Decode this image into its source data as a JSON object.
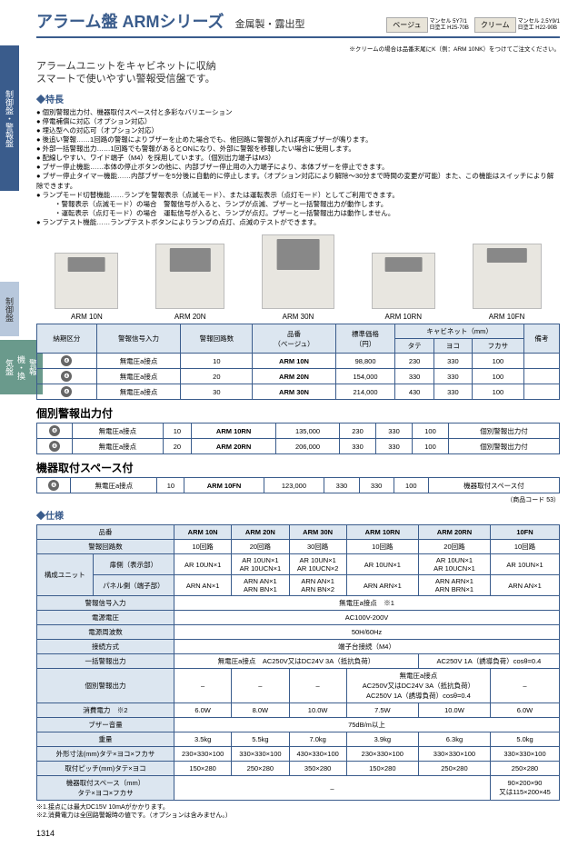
{
  "sideTabs": {
    "tab1": "制御盤・警報盤",
    "tab2": "制御盤",
    "tab3": "警報機・換気盤"
  },
  "header": {
    "series": "アラーム盤  ARMシリーズ",
    "type": "金属製・露出型",
    "colors": [
      {
        "label": "ベージュ",
        "l1": "マンセル 5Y7/1",
        "l2": "日塗工 H25-70B"
      },
      {
        "label": "クリーム",
        "l1": "マンセル 2.5Y9/1",
        "l2": "日塗工 H22-90B"
      }
    ],
    "topNote": "※クリームの場合は品番末尾にK（例：ARM 10NK）をつけてご注文ください。"
  },
  "intro": {
    "l1": "アラームユニットをキャビネットに収納",
    "l2": "スマートで使いやすい警報受信盤です。"
  },
  "featuresTitle": "◆特長",
  "features": [
    "個別警報出力付、機器取付スペース付と多彩なバリエーション",
    "停電補償に対応（オプション対応）",
    "埋込型への対応可（オプション対応）",
    "後追い警報……1回路の警報によりブザーを止めた場合でも、他回路に警報が入れば再度ブザーが鳴ります。",
    "外部一括警報出力……1回路でも警報があるとONになり、外部に警報を移報したい場合に使用します。",
    "配線しやすい、ワイド端子（M4）を採用しています。（個別出力端子はM3）",
    "ブザー停止機能……本体の停止ボタンの他に、内部ブザー停止用の入力端子により、本体ブザーを停止できます。",
    "ブザー停止タイマー機能……内部ブザーを5分後に自動的に停止します。（オプション対応により解除～30分まで時間の変更が可能）また、この機能はスイッチにより解除できます。",
    "ランプモード切替機能……ランプを警報表示（点滅モード）、または運転表示（点灯モード）としてご利用できます。"
  ],
  "featuresSub": [
    "・警報表示（点滅モード）の場合　警報信号が入ると、ランプが点滅、ブザーと一括警報出力が動作します。",
    "・運転表示（点灯モード）の場合　運転信号が入ると、ランプが点灯。ブザーと一括警報出力は動作しません。"
  ],
  "featuresLast": "ランプテスト機能……ランプテストボタンによりランプの点灯、点滅のテストができます。",
  "prodNames": [
    "ARM 10N",
    "ARM 20N",
    "ARM 30N",
    "ARM 10RN",
    "ARM 10FN"
  ],
  "table1": {
    "headers": {
      "c1": "納期区分",
      "c2": "警報信号入力",
      "c3": "警報回路数",
      "c4": "品番\n（ベージュ）",
      "c5": "標準価格\n（円）",
      "c6": "キャビネット（mm）",
      "c6a": "タテ",
      "c6b": "ヨコ",
      "c6c": "フカサ",
      "c7": "備考"
    },
    "rows": [
      {
        "k": "❹",
        "sig": "無電圧a接点",
        "n": "10",
        "pn": "ARM 10N",
        "price": "98,800",
        "t": "230",
        "y": "330",
        "f": "100",
        "r": ""
      },
      {
        "k": "❹",
        "sig": "無電圧a接点",
        "n": "20",
        "pn": "ARM 20N",
        "price": "154,000",
        "t": "330",
        "y": "330",
        "f": "100",
        "r": ""
      },
      {
        "k": "❹",
        "sig": "無電圧a接点",
        "n": "30",
        "pn": "ARM 30N",
        "price": "214,000",
        "t": "430",
        "y": "330",
        "f": "100",
        "r": ""
      }
    ]
  },
  "sub1": "個別警報出力付",
  "table2": {
    "rows": [
      {
        "k": "❹",
        "sig": "無電圧a接点",
        "n": "10",
        "pn": "ARM 10RN",
        "price": "135,000",
        "t": "230",
        "y": "330",
        "f": "100",
        "r": "個別警報出力付"
      },
      {
        "k": "❹",
        "sig": "無電圧a接点",
        "n": "20",
        "pn": "ARM 20RN",
        "price": "206,000",
        "t": "330",
        "y": "330",
        "f": "100",
        "r": "個別警報出力付"
      }
    ]
  },
  "sub2": "機器取付スペース付",
  "table3": {
    "rows": [
      {
        "k": "❹",
        "sig": "無電圧a接点",
        "n": "10",
        "pn": "ARM 10FN",
        "price": "123,000",
        "t": "330",
        "y": "330",
        "f": "100",
        "r": "機器取付スペース付"
      }
    ]
  },
  "codeNote": "（商品コード 53）",
  "specTitle": "◆仕様",
  "spec": {
    "colHead": "品番",
    "cols": [
      "ARM 10N",
      "ARM 20N",
      "ARM 30N",
      "ARM 10RN",
      "ARM 20RN",
      "10FN"
    ],
    "rows": [
      {
        "h": "警報回路数",
        "v": [
          "10回路",
          "20回路",
          "30回路",
          "10回路",
          "20回路",
          "10回路"
        ]
      },
      {
        "h": "構成ユニット",
        "h2a": "扉側（表示部）",
        "h2b": "パネル側（端子部）",
        "va": [
          "AR 10UN×1",
          "AR 10UN×1\nAR 10UCN×1",
          "AR 10UN×1\nAR 10UCN×2",
          "AR 10UN×1",
          "AR 10UN×1\nAR 10UCN×1",
          "AR 10UN×1"
        ],
        "vb": [
          "ARN AN×1",
          "ARN AN×1\nARN BN×1",
          "ARN AN×1\nARN BN×2",
          "ARN ARN×1",
          "ARN ARN×1\nARN BRN×1",
          "ARN AN×1"
        ]
      },
      {
        "h": "警報信号入力",
        "span": "無電圧a接点　※1"
      },
      {
        "h": "電源電圧",
        "span": "AC100V-200V"
      },
      {
        "h": "電源周波数",
        "span": "50H/60Hz"
      },
      {
        "h": "接続方式",
        "span": "端子台接続（M4）"
      },
      {
        "h": "一括警報出力",
        "spanL": "無電圧a接点　AC250V又はDC24V  3A（抵抗負荷）",
        "spanR": "AC250V  1A（誘導負荷）cosθ=0.4"
      },
      {
        "h": "個別警報出力",
        "v": [
          "–",
          "–",
          "–",
          "",
          "",
          "–"
        ],
        "mid": "無電圧a接点\nAC250V又はDC24V  3A（抵抗負荷）\nAC250V  1A（誘導負荷）cosθ=0.4"
      },
      {
        "h": "消費電力　※2",
        "v": [
          "6.0W",
          "8.0W",
          "10.0W",
          "7.5W",
          "10.0W",
          "6.0W"
        ]
      },
      {
        "h": "ブザー音量",
        "span": "75dB/m以上"
      },
      {
        "h": "重量",
        "v": [
          "3.5kg",
          "5.5kg",
          "7.0kg",
          "3.9kg",
          "6.3kg",
          "5.0kg"
        ]
      },
      {
        "h": "外形寸法(mm)タテ×ヨコ×フカサ",
        "v": [
          "230×330×100",
          "330×330×100",
          "430×330×100",
          "230×330×100",
          "330×330×100",
          "330×330×100"
        ]
      },
      {
        "h": "取付ピッチ(mm)タテ×ヨコ",
        "v": [
          "150×280",
          "250×280",
          "350×280",
          "150×280",
          "250×280",
          "250×280"
        ]
      },
      {
        "h": "機器取付スペース（mm）\nタテ×ヨコ×フカサ",
        "v5": "–",
        "v6": "90×200×90\n又は115×200×45"
      }
    ]
  },
  "footnotes": [
    "※1.接点には最大DC15V 10mAがかかります。",
    "※2.消費電力は全回路警報時の値です。（オプションは含みません。）"
  ],
  "pageNum": "1314"
}
